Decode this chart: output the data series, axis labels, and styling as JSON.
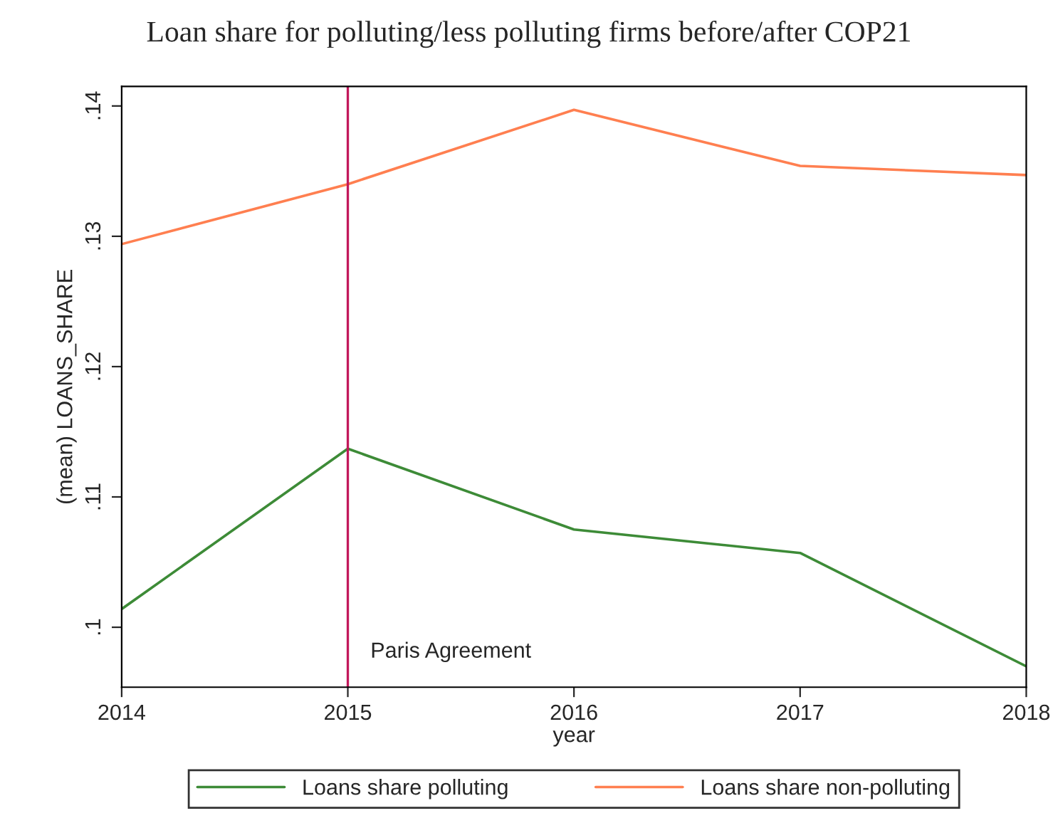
{
  "chart_data": {
    "type": "line",
    "title": "Loan share for polluting/less polluting firms before/after COP21",
    "xlabel": "year",
    "ylabel": "(mean) LOANS_SHARE",
    "x": [
      2014,
      2015,
      2016,
      2017,
      2018
    ],
    "series": [
      {
        "name": "Loans share polluting",
        "color": "#3d8b37",
        "values": [
          0.1014,
          0.1137,
          0.1075,
          0.1057,
          0.097
        ]
      },
      {
        "name": "Loans share non-polluting",
        "color": "#ff7f50",
        "values": [
          0.1294,
          0.134,
          0.1397,
          0.1354,
          0.1347
        ]
      }
    ],
    "xlim": [
      2014,
      2018
    ],
    "xticks": [
      2014,
      2015,
      2016,
      2017,
      2018
    ],
    "ylim": [
      0.0954,
      0.1415
    ],
    "yticks": [
      {
        "value": 0.1,
        "label": ".1"
      },
      {
        "value": 0.11,
        "label": ".11"
      },
      {
        "value": 0.12,
        "label": ".12"
      },
      {
        "value": 0.13,
        "label": ".13"
      },
      {
        "value": 0.14,
        "label": ".14"
      }
    ],
    "ref_lines": [
      {
        "axis": "x",
        "value": 2015,
        "label": "Paris Agreement",
        "color": "#c2185b"
      }
    ],
    "legend": "bottom",
    "grid": false,
    "marker": "none",
    "line_style": "solid"
  }
}
